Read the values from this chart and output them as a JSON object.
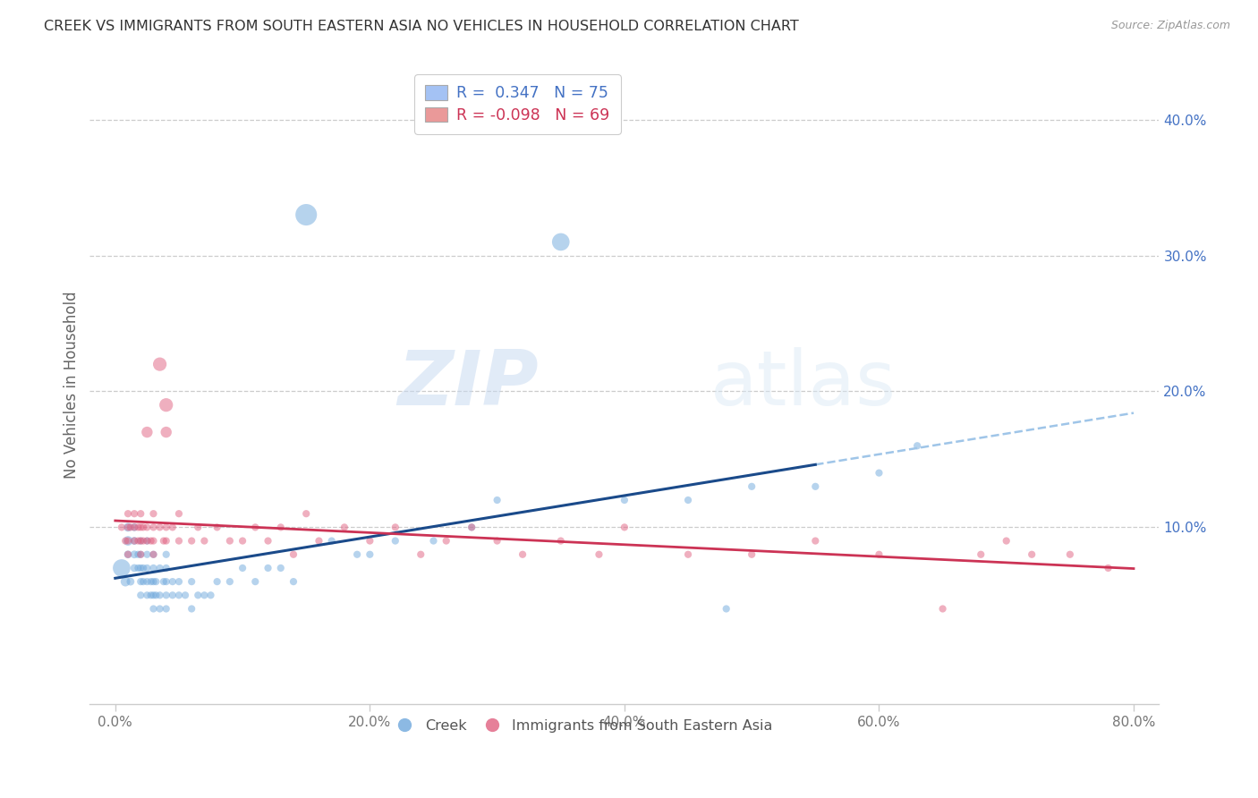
{
  "title": "CREEK VS IMMIGRANTS FROM SOUTH EASTERN ASIA NO VEHICLES IN HOUSEHOLD CORRELATION CHART",
  "source_text": "Source: ZipAtlas.com",
  "ylabel": "No Vehicles in Household",
  "xlabel_ticks": [
    "0.0%",
    "20.0%",
    "40.0%",
    "60.0%",
    "80.0%"
  ],
  "xlabel_tick_vals": [
    0.0,
    0.2,
    0.4,
    0.6,
    0.8
  ],
  "ylabel_ticks": [
    "10.0%",
    "20.0%",
    "30.0%",
    "40.0%"
  ],
  "ylabel_tick_vals": [
    0.1,
    0.2,
    0.3,
    0.4
  ],
  "xlim": [
    -0.02,
    0.82
  ],
  "ylim": [
    -0.03,
    0.44
  ],
  "blue_color": "#6fa8dc",
  "pink_color": "#e06080",
  "blue_line_color": "#1a4a8a",
  "pink_line_color": "#cc3355",
  "blue_dash_color": "#9fc5e8",
  "right_tick_color": "#4472c4",
  "legend_box_color_blue": "#a4c2f4",
  "legend_box_color_pink": "#ea9999",
  "R_blue": 0.347,
  "N_blue": 75,
  "R_pink": -0.098,
  "N_pink": 69,
  "watermark_zip": "ZIP",
  "watermark_atlas": "atlas",
  "blue_scatter_x": [
    0.005,
    0.008,
    0.01,
    0.01,
    0.01,
    0.012,
    0.015,
    0.015,
    0.015,
    0.015,
    0.018,
    0.018,
    0.02,
    0.02,
    0.02,
    0.02,
    0.02,
    0.022,
    0.022,
    0.025,
    0.025,
    0.025,
    0.025,
    0.025,
    0.028,
    0.028,
    0.03,
    0.03,
    0.03,
    0.03,
    0.03,
    0.032,
    0.032,
    0.035,
    0.035,
    0.035,
    0.038,
    0.04,
    0.04,
    0.04,
    0.04,
    0.04,
    0.045,
    0.045,
    0.05,
    0.05,
    0.055,
    0.06,
    0.06,
    0.065,
    0.07,
    0.075,
    0.08,
    0.09,
    0.1,
    0.11,
    0.12,
    0.13,
    0.14,
    0.15,
    0.17,
    0.19,
    0.2,
    0.22,
    0.25,
    0.28,
    0.3,
    0.35,
    0.4,
    0.45,
    0.48,
    0.5,
    0.55,
    0.6,
    0.63
  ],
  "blue_scatter_y": [
    0.07,
    0.06,
    0.09,
    0.1,
    0.08,
    0.06,
    0.07,
    0.08,
    0.09,
    0.1,
    0.07,
    0.08,
    0.05,
    0.06,
    0.07,
    0.08,
    0.09,
    0.06,
    0.07,
    0.05,
    0.06,
    0.07,
    0.08,
    0.09,
    0.05,
    0.06,
    0.04,
    0.05,
    0.06,
    0.07,
    0.08,
    0.05,
    0.06,
    0.04,
    0.05,
    0.07,
    0.06,
    0.04,
    0.05,
    0.06,
    0.07,
    0.08,
    0.05,
    0.06,
    0.05,
    0.06,
    0.05,
    0.04,
    0.06,
    0.05,
    0.05,
    0.05,
    0.06,
    0.06,
    0.07,
    0.06,
    0.07,
    0.07,
    0.06,
    0.33,
    0.09,
    0.08,
    0.08,
    0.09,
    0.09,
    0.1,
    0.12,
    0.31,
    0.12,
    0.12,
    0.04,
    0.13,
    0.13,
    0.14,
    0.16
  ],
  "blue_scatter_sizes": [
    200,
    60,
    60,
    50,
    40,
    40,
    40,
    40,
    40,
    40,
    35,
    35,
    35,
    35,
    35,
    35,
    35,
    35,
    35,
    35,
    35,
    35,
    35,
    35,
    35,
    35,
    35,
    35,
    35,
    35,
    35,
    35,
    35,
    35,
    35,
    35,
    35,
    35,
    35,
    35,
    35,
    35,
    35,
    35,
    35,
    35,
    35,
    35,
    35,
    35,
    35,
    35,
    35,
    35,
    35,
    35,
    35,
    35,
    35,
    300,
    35,
    35,
    35,
    35,
    35,
    35,
    35,
    200,
    35,
    35,
    35,
    35,
    35,
    35,
    35
  ],
  "pink_scatter_x": [
    0.005,
    0.008,
    0.01,
    0.01,
    0.01,
    0.01,
    0.012,
    0.015,
    0.015,
    0.015,
    0.018,
    0.018,
    0.02,
    0.02,
    0.02,
    0.02,
    0.022,
    0.022,
    0.025,
    0.025,
    0.025,
    0.028,
    0.03,
    0.03,
    0.03,
    0.03,
    0.035,
    0.035,
    0.038,
    0.04,
    0.04,
    0.04,
    0.04,
    0.045,
    0.05,
    0.05,
    0.06,
    0.065,
    0.07,
    0.08,
    0.09,
    0.1,
    0.11,
    0.12,
    0.13,
    0.14,
    0.15,
    0.16,
    0.18,
    0.2,
    0.22,
    0.24,
    0.26,
    0.28,
    0.3,
    0.32,
    0.35,
    0.38,
    0.4,
    0.45,
    0.5,
    0.55,
    0.6,
    0.65,
    0.68,
    0.7,
    0.72,
    0.75,
    0.78
  ],
  "pink_scatter_y": [
    0.1,
    0.09,
    0.08,
    0.1,
    0.11,
    0.09,
    0.1,
    0.09,
    0.1,
    0.11,
    0.09,
    0.1,
    0.09,
    0.1,
    0.08,
    0.11,
    0.09,
    0.1,
    0.17,
    0.09,
    0.1,
    0.09,
    0.09,
    0.1,
    0.08,
    0.11,
    0.22,
    0.1,
    0.09,
    0.19,
    0.17,
    0.09,
    0.1,
    0.1,
    0.09,
    0.11,
    0.09,
    0.1,
    0.09,
    0.1,
    0.09,
    0.09,
    0.1,
    0.09,
    0.1,
    0.08,
    0.11,
    0.09,
    0.1,
    0.09,
    0.1,
    0.08,
    0.09,
    0.1,
    0.09,
    0.08,
    0.09,
    0.08,
    0.1,
    0.08,
    0.08,
    0.09,
    0.08,
    0.04,
    0.08,
    0.09,
    0.08,
    0.08,
    0.07
  ],
  "pink_scatter_sizes": [
    35,
    35,
    35,
    35,
    35,
    35,
    35,
    35,
    35,
    35,
    35,
    35,
    35,
    35,
    35,
    35,
    35,
    35,
    80,
    35,
    35,
    35,
    35,
    35,
    35,
    35,
    120,
    35,
    35,
    120,
    80,
    35,
    35,
    35,
    35,
    35,
    35,
    35,
    35,
    35,
    35,
    35,
    35,
    35,
    35,
    35,
    35,
    35,
    35,
    35,
    35,
    35,
    35,
    35,
    35,
    35,
    35,
    35,
    35,
    35,
    35,
    35,
    35,
    35,
    35,
    35,
    35,
    35,
    35
  ]
}
